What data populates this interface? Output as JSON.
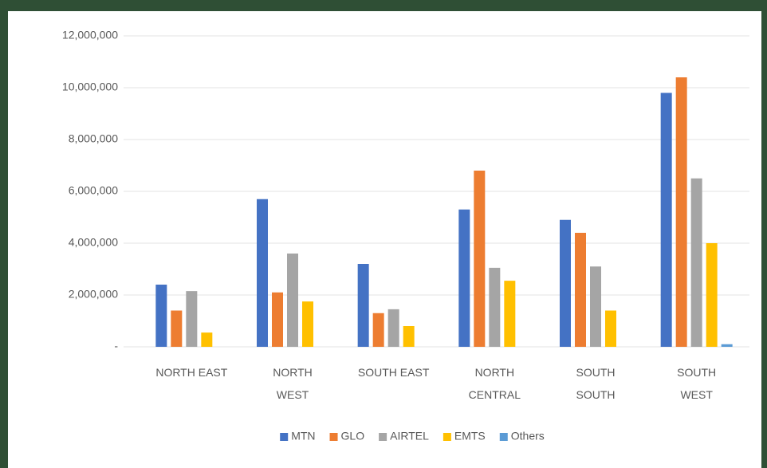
{
  "chart_data": {
    "type": "bar",
    "categories": [
      [
        "NORTH EAST"
      ],
      [
        "NORTH",
        "WEST"
      ],
      [
        "SOUTH EAST"
      ],
      [
        "NORTH",
        "CENTRAL"
      ],
      [
        "SOUTH",
        "SOUTH"
      ],
      [
        "SOUTH",
        "WEST"
      ]
    ],
    "series": [
      {
        "name": "MTN",
        "color": "#4472c4",
        "values": [
          2400000,
          5700000,
          3200000,
          5300000,
          4900000,
          9800000
        ]
      },
      {
        "name": "GLO",
        "color": "#ed7d31",
        "values": [
          1400000,
          2100000,
          1300000,
          6800000,
          4400000,
          10400000
        ]
      },
      {
        "name": "AIRTEL",
        "color": "#a5a5a5",
        "values": [
          2150000,
          3600000,
          1450000,
          3050000,
          3100000,
          6500000
        ]
      },
      {
        "name": "EMTS",
        "color": "#ffc000",
        "values": [
          550000,
          1750000,
          800000,
          2550000,
          1400000,
          4000000
        ]
      },
      {
        "name": "Others",
        "color": "#5b9bd5",
        "values": [
          0,
          0,
          0,
          0,
          0,
          100000
        ]
      }
    ],
    "ylim": [
      0,
      12000000
    ],
    "yticks": [
      {
        "value": 0,
        "label": "-"
      },
      {
        "value": 2000000,
        "label": "2,000,000"
      },
      {
        "value": 4000000,
        "label": "4,000,000"
      },
      {
        "value": 6000000,
        "label": "6,000,000"
      },
      {
        "value": 8000000,
        "label": "8,000,000"
      },
      {
        "value": 10000000,
        "label": "10,000,000"
      },
      {
        "value": 12000000,
        "label": "12,000,000"
      }
    ],
    "grid": true,
    "legend": "bottom"
  }
}
